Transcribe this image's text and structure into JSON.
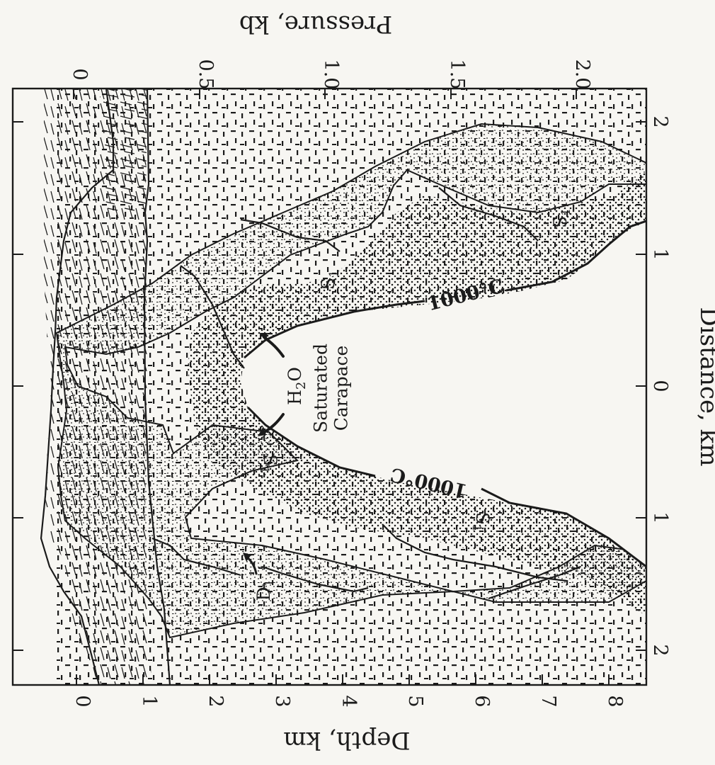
{
  "figure": {
    "bottom_axis": {
      "title": "Distance, km",
      "ticks": [
        "2",
        "1",
        "0",
        "1",
        "2"
      ]
    },
    "top_axis": {
      "title": "Pressure, kb",
      "ticks": [
        "0",
        "0.5",
        "1.0",
        "1.5",
        "2.0"
      ]
    },
    "left_axis": {
      "title": "Depth, km",
      "ticks": [
        "0",
        "1",
        "2",
        "3",
        "4",
        "5",
        "6",
        "7",
        "8"
      ]
    },
    "annotations": {
      "isotherm_upper": "1000°C",
      "isotherm_lower": "1000°C",
      "carapace_line1": "Saturated",
      "carapace_line2": "Carapace",
      "water_main": "H",
      "water_sub": "2",
      "water_end": "O",
      "surface_s_main": "S",
      "surface_s_sub": "1",
      "surface_d_main": "D",
      "surface_d_sub": "1"
    },
    "colors": {
      "ink": "#1b1b1b",
      "paper": "#f7f6f2"
    }
  }
}
